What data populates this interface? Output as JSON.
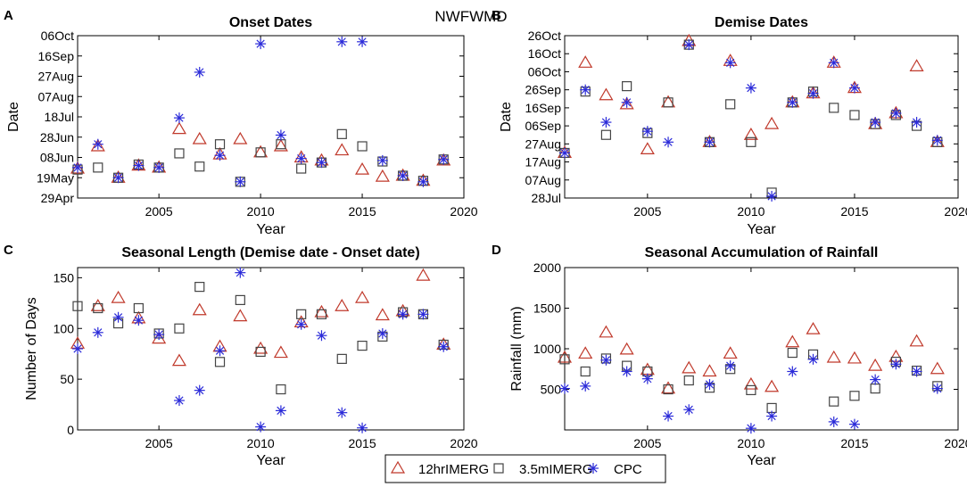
{
  "suptitle": "NWFWMD",
  "colors": {
    "12hrIMERG": "#c0392b",
    "3.5mIMERG": "#444444",
    "CPC": "#2b2bd9"
  },
  "legend": [
    {
      "name": "12hrIMERG",
      "marker": "triangle"
    },
    {
      "name": "3.5mIMERG",
      "marker": "square"
    },
    {
      "name": "CPC",
      "marker": "asterisk"
    }
  ],
  "chart_data": [
    {
      "panel": "A",
      "type": "scatter",
      "title": "Onset Dates",
      "xlabel": "Year",
      "ylabel": "Date",
      "xlim": [
        2001,
        2020
      ],
      "xticks": [
        2005,
        2010,
        2015,
        2020
      ],
      "ylim": [
        119,
        279
      ],
      "yticks": [
        119,
        139,
        159,
        179,
        199,
        219,
        239,
        259,
        279
      ],
      "yticklabels": [
        "29Apr",
        "19May",
        "08Jun",
        "28Jun",
        "18Jul",
        "07Aug",
        "27Aug",
        "16Sep",
        "06Oct"
      ],
      "x": [
        2001,
        2002,
        2003,
        2004,
        2005,
        2006,
        2007,
        2008,
        2009,
        2010,
        2011,
        2012,
        2013,
        2014,
        2015,
        2016,
        2017,
        2018,
        2019
      ],
      "series": [
        {
          "name": "12hrIMERG",
          "values": [
            148,
            170,
            139,
            151,
            149,
            187,
            177,
            162,
            177,
            164,
            170,
            159,
            156,
            166,
            147,
            140,
            141,
            136,
            156
          ]
        },
        {
          "name": "3.5mIMERG",
          "values": [
            147,
            149,
            139,
            152,
            149,
            163,
            150,
            172,
            135,
            164,
            172,
            148,
            154,
            182,
            170,
            155,
            141,
            136,
            157
          ]
        },
        {
          "name": "CPC",
          "values": [
            149,
            172,
            139,
            151,
            149,
            198,
            243,
            161,
            135,
            271,
            181,
            158,
            154,
            273,
            273,
            156,
            141,
            135,
            157
          ]
        }
      ]
    },
    {
      "panel": "B",
      "type": "scatter",
      "title": "Demise Dates",
      "xlabel": "Year",
      "ylabel": "Date",
      "xlim": [
        2001,
        2020
      ],
      "xticks": [
        2005,
        2010,
        2015,
        2020
      ],
      "ylim": [
        209,
        299
      ],
      "yticks": [
        209,
        219,
        229,
        239,
        249,
        259,
        269,
        279,
        289,
        299
      ],
      "yticklabels": [
        "28Jul",
        "07Aug",
        "17Aug",
        "27Aug",
        "06Sep",
        "16Sep",
        "26Sep",
        "06Oct",
        "16Oct",
        "26Oct"
      ],
      "x": [
        2001,
        2002,
        2003,
        2004,
        2005,
        2006,
        2007,
        2008,
        2009,
        2010,
        2011,
        2012,
        2013,
        2014,
        2015,
        2016,
        2017,
        2018,
        2019
      ],
      "series": [
        {
          "name": "12hrIMERG",
          "values": [
            234,
            284,
            266,
            261,
            236,
            262,
            296,
            240,
            285,
            244,
            250,
            262,
            267,
            284,
            270,
            250,
            256,
            282,
            240
          ]
        },
        {
          "name": "3.5mIMERG",
          "values": [
            234,
            268,
            244,
            271,
            245,
            262,
            294,
            240,
            261,
            240,
            212,
            262,
            268,
            259,
            255,
            250,
            255,
            249,
            240
          ]
        },
        {
          "name": "CPC",
          "values": [
            234,
            269,
            251,
            262,
            246,
            240,
            294,
            240,
            284,
            270,
            210,
            262,
            267,
            284,
            270,
            251,
            256,
            251,
            241
          ]
        }
      ]
    },
    {
      "panel": "C",
      "type": "scatter",
      "title": "Seasonal Length (Demise date - Onset date)",
      "xlabel": "Year",
      "ylabel": "Number of Days",
      "xlim": [
        2001,
        2020
      ],
      "xticks": [
        2005,
        2010,
        2015,
        2020
      ],
      "ylim": [
        0,
        160
      ],
      "yticks": [
        0,
        50,
        100,
        150
      ],
      "yticklabels": [
        "0",
        "50",
        "100",
        "150"
      ],
      "x": [
        2001,
        2002,
        2003,
        2004,
        2005,
        2006,
        2007,
        2008,
        2009,
        2010,
        2011,
        2012,
        2013,
        2014,
        2015,
        2016,
        2017,
        2018,
        2019
      ],
      "series": [
        {
          "name": "12hrIMERG",
          "values": [
            85,
            122,
            130,
            110,
            90,
            68,
            118,
            82,
            112,
            80,
            76,
            106,
            116,
            122,
            130,
            113,
            117,
            152,
            84
          ]
        },
        {
          "name": "3.5mIMERG",
          "values": [
            122,
            120,
            105,
            120,
            95,
            100,
            141,
            67,
            128,
            77,
            40,
            114,
            114,
            70,
            83,
            92,
            116,
            114,
            84
          ]
        },
        {
          "name": "CPC",
          "values": [
            80,
            96,
            111,
            108,
            94,
            29,
            39,
            78,
            155,
            3,
            19,
            104,
            93,
            17,
            2,
            95,
            114,
            114,
            82
          ]
        }
      ]
    },
    {
      "panel": "D",
      "type": "scatter",
      "title": "Seasonal Accumulation of Rainfall",
      "xlabel": "Year",
      "ylabel": "Rainfall (mm)",
      "xlim": [
        2001,
        2020
      ],
      "xticks": [
        2005,
        2010,
        2015,
        2020
      ],
      "ylim": [
        0,
        2000
      ],
      "yticks": [
        500,
        1000,
        1500,
        2000
      ],
      "yticklabels": [
        "500",
        "1000",
        "1500",
        "2000"
      ],
      "x": [
        2001,
        2002,
        2003,
        2004,
        2005,
        2006,
        2007,
        2008,
        2009,
        2010,
        2011,
        2012,
        2013,
        2014,
        2015,
        2016,
        2017,
        2018,
        2019
      ],
      "series": [
        {
          "name": "12hrIMERG",
          "values": [
            890,
            940,
            1200,
            990,
            740,
            510,
            760,
            720,
            940,
            560,
            530,
            1080,
            1240,
            890,
            880,
            790,
            900,
            1090,
            750
          ]
        },
        {
          "name": "3.5mIMERG",
          "values": [
            870,
            720,
            880,
            790,
            720,
            500,
            610,
            520,
            750,
            490,
            270,
            950,
            930,
            350,
            420,
            510,
            840,
            730,
            540
          ]
        },
        {
          "name": "CPC",
          "values": [
            510,
            540,
            860,
            720,
            630,
            170,
            250,
            560,
            790,
            20,
            170,
            720,
            870,
            100,
            70,
            620,
            810,
            720,
            510
          ]
        }
      ]
    }
  ]
}
